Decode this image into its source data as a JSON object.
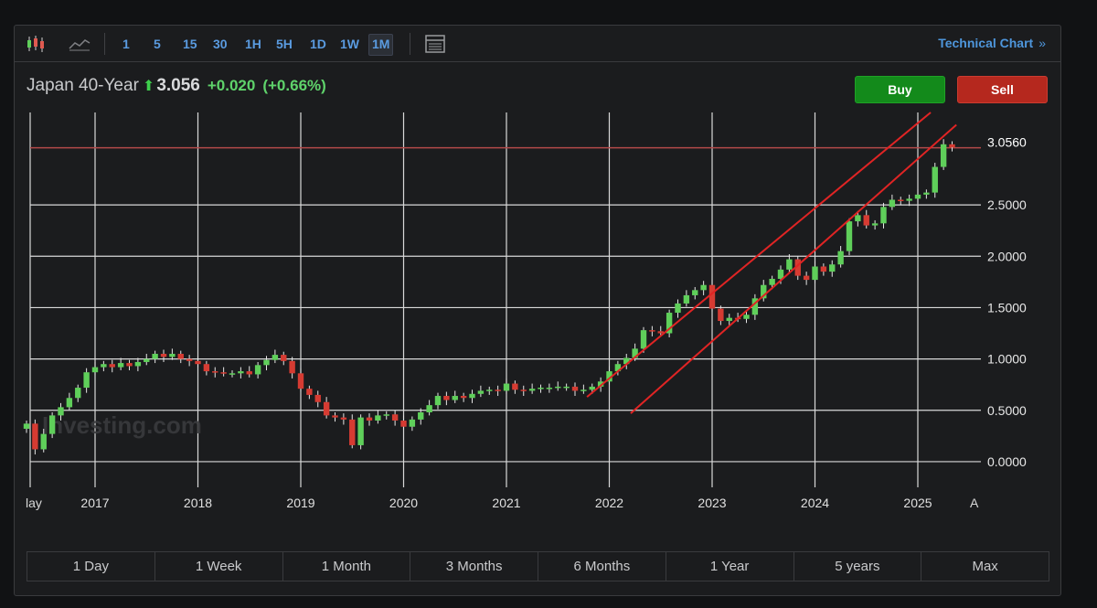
{
  "toolbar": {
    "timeframes": [
      "1",
      "5",
      "15",
      "30",
      "1H",
      "5H",
      "1D",
      "1W",
      "1M"
    ],
    "active_timeframe": "1M",
    "technical_chart_label": "Technical Chart",
    "chevron": "»",
    "icons": [
      "candlestick-icon",
      "line-chart-icon",
      "table-view-icon"
    ]
  },
  "quote": {
    "name": "Japan 40-Year",
    "arrow": "⬆",
    "price": "3.056",
    "change": "+0.020",
    "change_pct": "(+0.66%)"
  },
  "buttons": {
    "buy": "Buy",
    "sell": "Sell"
  },
  "colors": {
    "up": "#5fcf5a",
    "down": "#d63b32",
    "channel": "#e02424",
    "price_line": "#b34a4a",
    "buy": "#138a1b",
    "sell": "#b5281e",
    "link": "#4e96dc"
  },
  "watermark": "Investing.com",
  "periods": [
    "1 Day",
    "1 Week",
    "1 Month",
    "3 Months",
    "6 Months",
    "1 Year",
    "5 years",
    "Max"
  ],
  "chart_data": {
    "type": "candlestick",
    "interval": "monthly",
    "y_ticks": [
      "0.0000",
      "0.5000",
      "1.0000",
      "1.5000",
      "2.0000",
      "2.5000"
    ],
    "y_range": [
      -0.25,
      3.4
    ],
    "current_price_label": "3.0560",
    "current_price": 3.056,
    "x_start_label": "lay",
    "x_end_label": "A",
    "x_ticks": [
      "2017",
      "2018",
      "2019",
      "2020",
      "2021",
      "2022",
      "2023",
      "2024",
      "2025"
    ],
    "closes": [
      0.37,
      0.12,
      0.27,
      0.45,
      0.53,
      0.62,
      0.72,
      0.87,
      0.92,
      0.95,
      0.92,
      0.96,
      0.93,
      0.97,
      1.0,
      1.05,
      1.02,
      1.05,
      1.0,
      0.98,
      0.95,
      0.88,
      0.87,
      0.86,
      0.86,
      0.88,
      0.85,
      0.94,
      0.99,
      1.04,
      0.98,
      0.86,
      0.71,
      0.65,
      0.58,
      0.45,
      0.43,
      0.41,
      0.16,
      0.43,
      0.4,
      0.45,
      0.46,
      0.4,
      0.34,
      0.41,
      0.48,
      0.55,
      0.64,
      0.6,
      0.64,
      0.62,
      0.66,
      0.69,
      0.7,
      0.69,
      0.76,
      0.7,
      0.69,
      0.71,
      0.72,
      0.72,
      0.73,
      0.73,
      0.69,
      0.7,
      0.73,
      0.78,
      0.88,
      0.95,
      1.01,
      1.1,
      1.28,
      1.27,
      1.25,
      1.45,
      1.54,
      1.62,
      1.67,
      1.72,
      1.49,
      1.37,
      1.4,
      1.39,
      1.43,
      1.59,
      1.72,
      1.78,
      1.87,
      1.97,
      1.81,
      1.77,
      1.9,
      1.85,
      1.92,
      2.05,
      2.34,
      2.4,
      2.3,
      2.32,
      2.48,
      2.55,
      2.54,
      2.56,
      2.6,
      2.62,
      2.87,
      3.09,
      3.06
    ]
  }
}
